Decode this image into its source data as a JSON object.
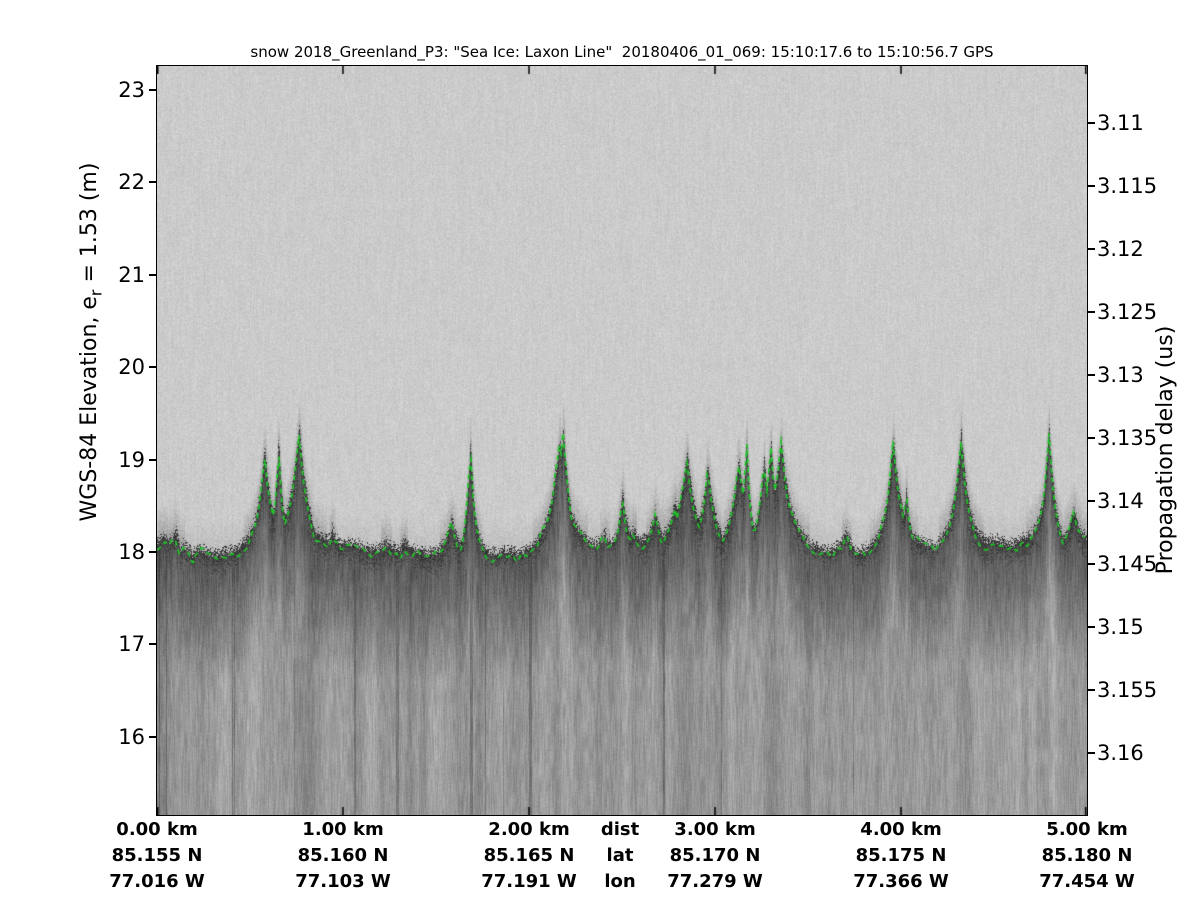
{
  "chart_data": {
    "type": "heatmap",
    "subtype": "radar-echogram",
    "title": "snow 2018_Greenland_P3: \"Sea Ice: Laxon Line\"  20180406_01_069: 15:10:17.6 to 15:10:56.7 GPS",
    "image_description": "Grayscale snow-radar echogram: uniform light-grey speckle noise above a dark, spiky sea-ice surface return near 18 m WGS-84 elevation; below the return the echo fades into mottled mid-grey with vertical streaks. A dashed bright-green line traces the picked surface, climbing each pressure-ridge spike.",
    "left_axis": {
      "label": "WGS-84 Elevation, e_r = 1.53 (m)",
      "label_parts": {
        "prefix": "WGS-84 Elevation, e",
        "subscript": "r",
        "suffix": " = 1.53 (m)"
      },
      "units": "m",
      "ticks": [
        23,
        22,
        21,
        20,
        19,
        18,
        17,
        16
      ],
      "range": [
        15.2,
        23.26
      ],
      "tick_side": "outward"
    },
    "right_axis": {
      "label": "Propagation delay (us)",
      "units": "us",
      "ticks": [
        3.11,
        3.115,
        3.12,
        3.125,
        3.13,
        3.135,
        3.14,
        3.145,
        3.15,
        3.155,
        3.16
      ],
      "range": [
        3.1055,
        3.165
      ],
      "tick_side": "outward"
    },
    "x_axis": {
      "row_headers": [
        "dist",
        "lat",
        "lon"
      ],
      "columns": [
        {
          "dist": "0.00 km",
          "lat": "85.155 N",
          "lon": "77.016 W"
        },
        {
          "dist": "1.00 km",
          "lat": "85.160 N",
          "lon": "77.103 W"
        },
        {
          "dist": "2.00 km",
          "lat": "85.165 N",
          "lon": "77.191 W"
        },
        {
          "dist": "3.00 km",
          "lat": "85.170 N",
          "lon": "77.279 W"
        },
        {
          "dist": "4.00 km",
          "lat": "85.175 N",
          "lon": "77.366 W"
        },
        {
          "dist": "5.00 km",
          "lat": "85.180 N",
          "lon": "77.454 W"
        }
      ],
      "range_km": [
        0,
        5
      ],
      "tick_km": [
        0,
        1,
        2,
        3,
        4,
        5
      ],
      "tick_side": "inward-top-and-bottom"
    },
    "surface_pick_line": {
      "name": "surface pick",
      "style": "dashed",
      "color": "#1ec828",
      "typical_elevation_m": 18.05,
      "max_elevation_m": 19.3,
      "min_elevation_m": 17.7,
      "typical_delay_us": 3.1425
    },
    "colors": {
      "background": "#ffffff",
      "axis": "#000000",
      "noise_light": "#cbcbcb",
      "surface_dark": "#3c3c3c",
      "subsurface_mid": "#969696"
    },
    "grid": "off",
    "legend": "none"
  }
}
